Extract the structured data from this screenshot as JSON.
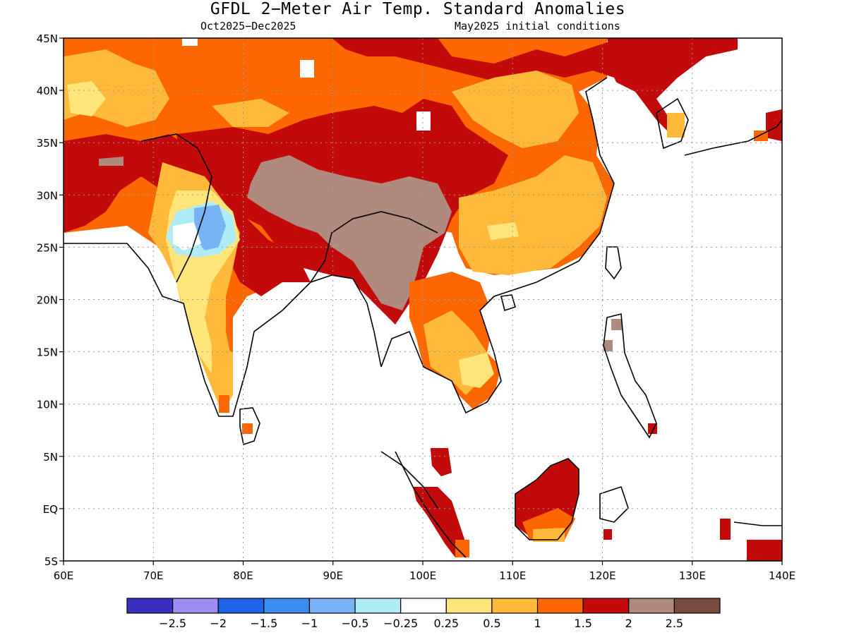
{
  "title": "GFDL 2−Meter Air Temp. Standard Anomalies",
  "subtitle_left": "Oct2025−Dec2025",
  "subtitle_right": "May2025 initial conditions",
  "map": {
    "lon_range": [
      60,
      140
    ],
    "lat_range": [
      -5,
      45
    ],
    "lat_ticks": [
      {
        "lat": 45,
        "label": "45N"
      },
      {
        "lat": 40,
        "label": "40N"
      },
      {
        "lat": 35,
        "label": "35N"
      },
      {
        "lat": 30,
        "label": "30N"
      },
      {
        "lat": 25,
        "label": "25N"
      },
      {
        "lat": 20,
        "label": "20N"
      },
      {
        "lat": 15,
        "label": "15N"
      },
      {
        "lat": 10,
        "label": "10N"
      },
      {
        "lat": 5,
        "label": "5N"
      },
      {
        "lat": 0,
        "label": "EQ"
      },
      {
        "lat": -5,
        "label": "5S"
      }
    ],
    "lon_ticks": [
      {
        "lon": 60,
        "label": "60E"
      },
      {
        "lon": 70,
        "label": "70E"
      },
      {
        "lon": 80,
        "label": "80E"
      },
      {
        "lon": 90,
        "label": "90E"
      },
      {
        "lon": 100,
        "label": "100E"
      },
      {
        "lon": 110,
        "label": "110E"
      },
      {
        "lon": 120,
        "label": "120E"
      },
      {
        "lon": 130,
        "label": "130E"
      },
      {
        "lon": 140,
        "label": "140E"
      }
    ],
    "grid": true
  },
  "colorbar": {
    "colors": [
      "#3a2fbf",
      "#9d8cf2",
      "#1f64e6",
      "#3c8ef0",
      "#78b4f5",
      "#b0ecf7",
      "#ffffff",
      "#ffe57a",
      "#ffba3c",
      "#fc6700",
      "#c20a0a",
      "#b08a7c",
      "#7a4c40"
    ],
    "labels": [
      "−2.5",
      "−2",
      "−1.5",
      "−1",
      "−0.5",
      "−0.25",
      "0.25",
      "0.5",
      "1",
      "1.5",
      "2",
      "2.5"
    ]
  }
}
